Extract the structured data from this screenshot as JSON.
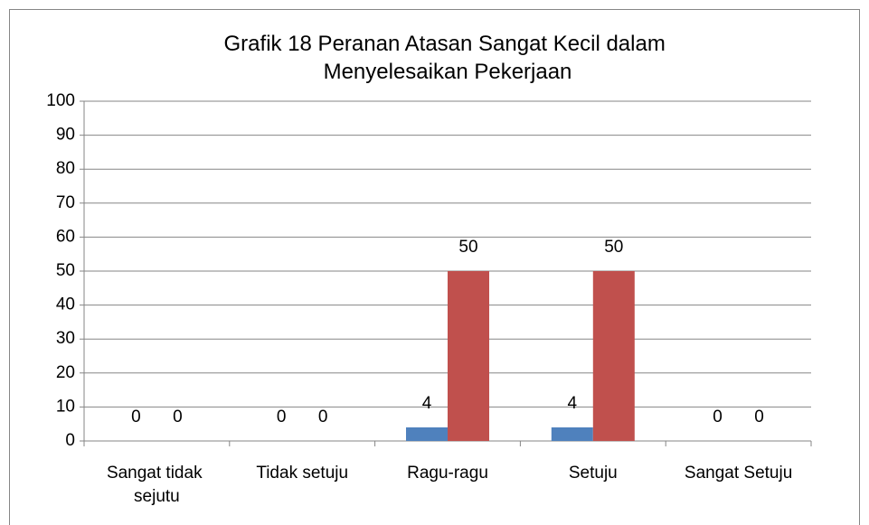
{
  "chart_data": {
    "type": "bar",
    "title": "Grafik 18 Peranan Atasan Sangat Kecil dalam Menyelesaikan Pekerjaan",
    "categories": [
      "Sangat tidak sejutu",
      "Tidak setuju",
      "Ragu-ragu",
      "Setuju",
      "Sangat Setuju"
    ],
    "series": [
      {
        "color": "#4f81bd",
        "values": [
          0,
          0,
          4,
          4,
          0
        ]
      },
      {
        "color": "#c0504d",
        "values": [
          0,
          0,
          50,
          50,
          0
        ]
      }
    ],
    "ylim": [
      0,
      100
    ],
    "yticks": [
      0,
      10,
      20,
      30,
      40,
      50,
      60,
      70,
      80,
      90,
      100
    ],
    "grid": true
  }
}
